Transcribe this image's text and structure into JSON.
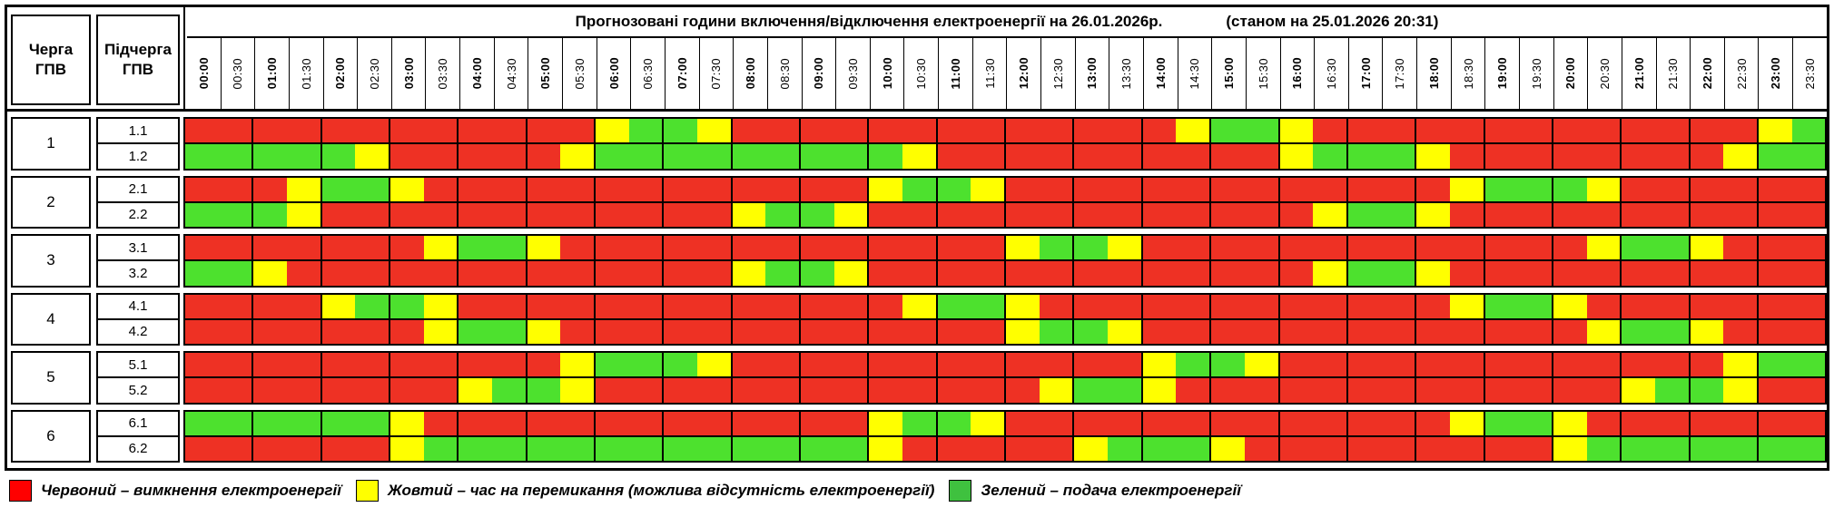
{
  "chart_data": {
    "type": "heatmap",
    "title": "Прогнозовані години включення/відключення електроенергії на 26.01.2026р.",
    "as_of": "(станом на 25.01.2026 20:31)",
    "queue_header": "Черга\nГПВ",
    "subqueue_header": "Підчерга\nГПВ",
    "x_labels": [
      "00:00",
      "00:30",
      "01:00",
      "01:30",
      "02:00",
      "02:30",
      "03:00",
      "03:30",
      "04:00",
      "04:30",
      "05:00",
      "05:30",
      "06:00",
      "06:30",
      "07:00",
      "07:30",
      "08:00",
      "08:30",
      "09:00",
      "09:30",
      "10:00",
      "10:30",
      "11:00",
      "11:30",
      "12:00",
      "12:30",
      "13:00",
      "13:30",
      "14:00",
      "14:30",
      "15:00",
      "15:30",
      "16:00",
      "16:30",
      "17:00",
      "17:30",
      "18:00",
      "18:30",
      "19:00",
      "19:30",
      "20:00",
      "20:30",
      "21:00",
      "21:30",
      "22:00",
      "22:30",
      "23:00",
      "23:30"
    ],
    "cell_colors": {
      "R": "#ee3124",
      "Y": "#ffff00",
      "G": "#4de12e"
    },
    "cell_states": {
      "R": "outage",
      "Y": "switching",
      "G": "power-on"
    },
    "groups": [
      {
        "queue": "1",
        "rows": [
          {
            "label": "1.1",
            "cells": "RRRRRRRRRRRRYGGYRRRRRRRRRRRRRYGGYRRRRRRRRRRRRRYG"
          },
          {
            "label": "1.2",
            "cells": "GGGGGYRRRRRYGGGGGGGGGYRRRRRRRRRRYGGGYRRRRRRRRYGG"
          }
        ]
      },
      {
        "queue": "2",
        "rows": [
          {
            "label": "2.1",
            "cells": "RRRYGGYRRRRRRRRRRRRRYGGYRRRRRRRRRRRRRYGGGYRRRRRR"
          },
          {
            "label": "2.2",
            "cells": "GGGYRRRRRRRRRRRRYGGYRRRRRRRRRRRRRYGGYRRRRRRRRRRR"
          }
        ]
      },
      {
        "queue": "3",
        "rows": [
          {
            "label": "3.1",
            "cells": "RRRRRRRYGGYRRRRRRRRRRRRRYGGYRRRRRRRRRRRRRYGGYRRR"
          },
          {
            "label": "3.2",
            "cells": "GGYRRRRRRRRRRRRRYGGYRRRRRRRRRRRRRYGGYRRRRRRRRRRR"
          }
        ]
      },
      {
        "queue": "4",
        "rows": [
          {
            "label": "4.1",
            "cells": "RRRRYGGYRRRRRRRRRRRRRYGGYRRRRRRRRRRRRYGGYRRRRRRR"
          },
          {
            "label": "4.2",
            "cells": "RRRRRRRYGGYRRRRRRRRRRRRRYGGYRRRRRRRRRRRRRYGGYRRR"
          }
        ]
      },
      {
        "queue": "5",
        "rows": [
          {
            "label": "5.1",
            "cells": "RRRRRRRRRRRYGGGYRRRRRRRRRRRRYGGYRRRRRRRRRRRRRYGG"
          },
          {
            "label": "5.2",
            "cells": "RRRRRRRRYGGYRRRRRRRRRRRRRYGGYRRRRRRRRRRRRRYGGYRR"
          }
        ]
      },
      {
        "queue": "6",
        "rows": [
          {
            "label": "6.1",
            "cells": "GGGGGGYRRRRRRRRRRRRRYGGYRRRRRRRRRRRRRYGGYRRRRRRR"
          },
          {
            "label": "6.2",
            "cells": "RRRRRRYGGGGGGGGGGGGGYRRRRRYGGGYRRRRRRRRRYGGGGGGG"
          }
        ]
      }
    ],
    "legend": [
      {
        "color": "#ff0000",
        "text": "Червоний – вимкнення електроенергії"
      },
      {
        "color": "#ffff00",
        "text": "Жовтий – час на перемикання (можлива відсутність електроенергії)"
      },
      {
        "color": "#3fc13f",
        "text": "Зелений – подача електроенергії"
      }
    ],
    "legend_position": "bottom",
    "grid": true
  }
}
